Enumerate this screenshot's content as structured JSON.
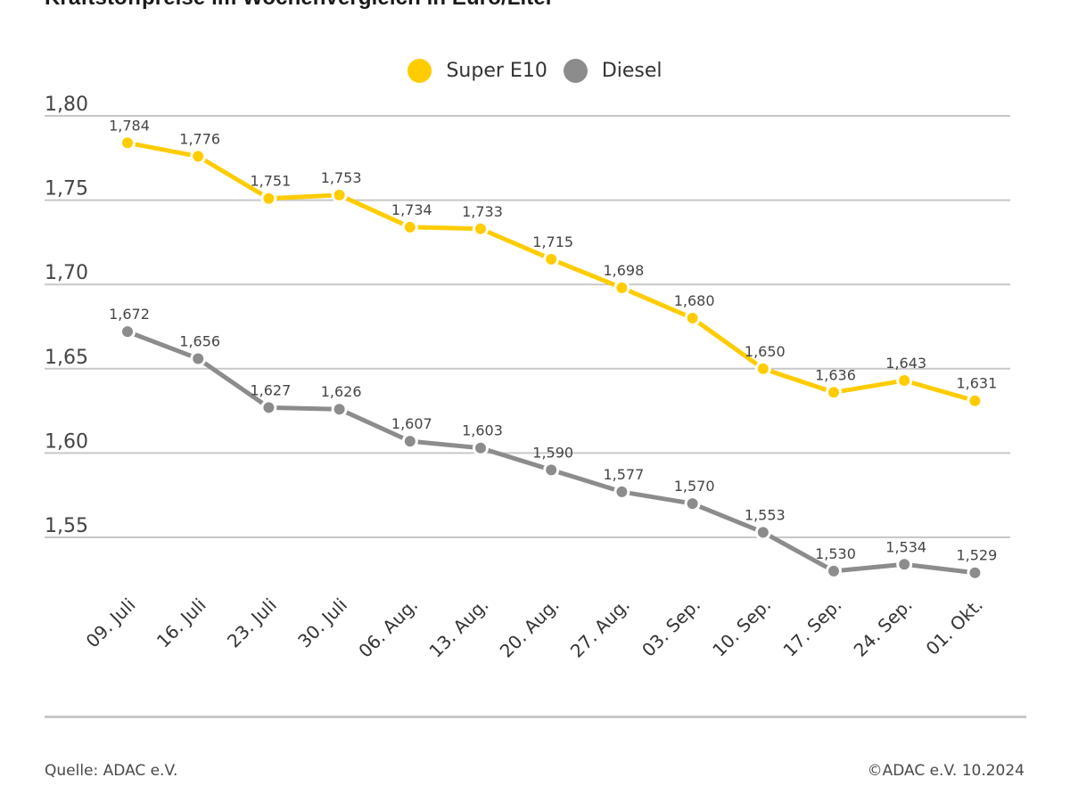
{
  "header": {
    "title": "Kraftstoffpreise im Wochenvergleich in Euro/Liter"
  },
  "legend": [
    {
      "label": "Super E10",
      "color": "#FFCC00"
    },
    {
      "label": "Diesel",
      "color": "#8C8C8C"
    }
  ],
  "footer": {
    "source": "Quelle: ADAC e.V.",
    "copyright": "©ADAC e.V. 10.2024"
  },
  "chart_data": {
    "type": "line",
    "title": "Kraftstoffpreise im Wochenvergleich in Euro/Liter",
    "xlabel": "",
    "ylabel": "Euro/Liter",
    "categories": [
      "09. Juli",
      "16. Juli",
      "23. Juli",
      "30. Juli",
      "06. Aug.",
      "13. Aug.",
      "20. Aug.",
      "27. Aug.",
      "03. Sep.",
      "10. Sep.",
      "17. Sep.",
      "24. Sep.",
      "01. Okt."
    ],
    "series": [
      {
        "name": "Super E10",
        "color": "#FFCC00",
        "values": [
          1.784,
          1.776,
          1.751,
          1.753,
          1.734,
          1.733,
          1.715,
          1.698,
          1.68,
          1.65,
          1.636,
          1.643,
          1.631
        ],
        "labels": [
          "1,784",
          "1,776",
          "1,751",
          "1,753",
          "1,734",
          "1,733",
          "1,715",
          "1,698",
          "1,680",
          "1,650",
          "1,636",
          "1,643",
          "1,631"
        ]
      },
      {
        "name": "Diesel",
        "color": "#8C8C8C",
        "values": [
          1.672,
          1.656,
          1.627,
          1.626,
          1.607,
          1.603,
          1.59,
          1.577,
          1.57,
          1.553,
          1.53,
          1.534,
          1.529
        ],
        "labels": [
          "1,672",
          "1,656",
          "1,627",
          "1,626",
          "1,607",
          "1,603",
          "1,590",
          "1,577",
          "1,570",
          "1,553",
          "1,530",
          "1,534",
          "1,529"
        ]
      }
    ],
    "yticks": [
      1.55,
      1.6,
      1.65,
      1.7,
      1.75,
      1.8
    ],
    "ytick_labels": [
      "1,55",
      "1,60",
      "1,65",
      "1,70",
      "1,75",
      "1,80"
    ],
    "ylim": [
      1.55,
      1.8
    ],
    "grid": true,
    "legend_position": "top-center",
    "gridline_color": "#C8C8C8"
  }
}
